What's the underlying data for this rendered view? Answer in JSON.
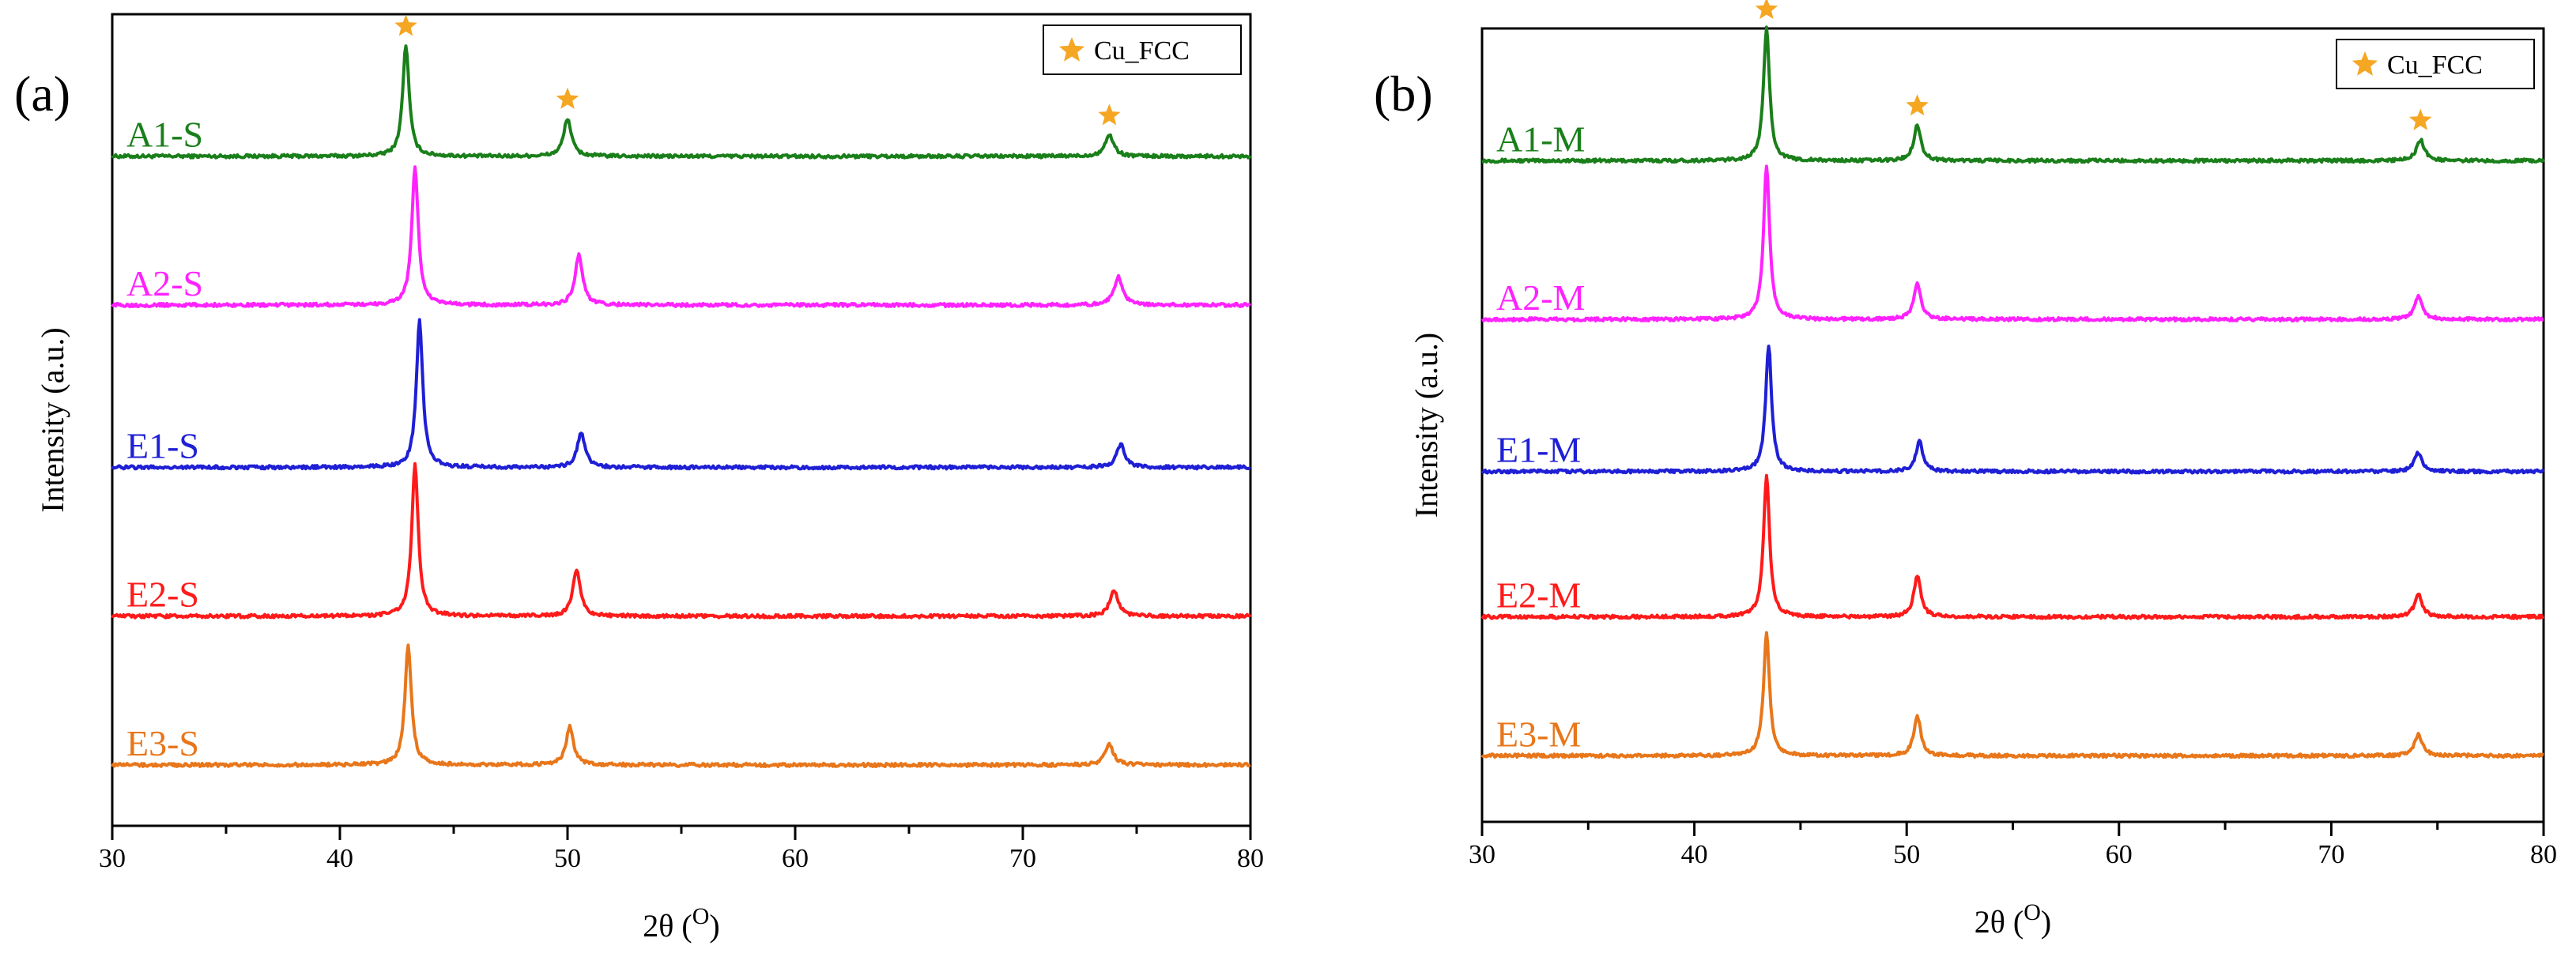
{
  "colors": {
    "A1": "#1a7f1a",
    "A2": "#ff22ff",
    "E1": "#1f1fd6",
    "E2": "#ff1a1a",
    "E3": "#e8761a",
    "star": "#f5a623",
    "axis": "#000000"
  },
  "chart_data": [
    {
      "type": "line",
      "panel_label": "(a)",
      "xlabel": "2θ (",
      "xlabel_unit": "O",
      "xlabel_close": ")",
      "ylabel": "Intensity (a.u.)",
      "xlim": [
        30,
        80
      ],
      "ylim": [
        0,
        6
      ],
      "xticks": [
        "30",
        "40",
        "50",
        "60",
        "70",
        "80"
      ],
      "legend": {
        "label": "Cu_FCC",
        "position": "top-right",
        "marker": "star"
      },
      "star_peaks": [
        42.9,
        50.0,
        73.8
      ],
      "series": [
        {
          "name": "A1-S",
          "color_key": "A1",
          "baseline": 4.95,
          "noise": 0.012,
          "peaks": [
            {
              "x": 42.9,
              "h": 0.82,
              "w": 0.17
            },
            {
              "x": 50.0,
              "h": 0.28,
              "w": 0.2
            },
            {
              "x": 73.8,
              "h": 0.16,
              "w": 0.22
            }
          ]
        },
        {
          "name": "A2-S",
          "color_key": "A2",
          "baseline": 3.85,
          "noise": 0.012,
          "peaks": [
            {
              "x": 43.3,
              "h": 1.02,
              "w": 0.17
            },
            {
              "x": 50.5,
              "h": 0.37,
              "w": 0.2
            },
            {
              "x": 74.2,
              "h": 0.21,
              "w": 0.22
            }
          ]
        },
        {
          "name": "E1-S",
          "color_key": "E1",
          "baseline": 2.65,
          "noise": 0.012,
          "peaks": [
            {
              "x": 43.5,
              "h": 1.08,
              "w": 0.17
            },
            {
              "x": 50.6,
              "h": 0.26,
              "w": 0.2
            },
            {
              "x": 74.3,
              "h": 0.17,
              "w": 0.22
            }
          ]
        },
        {
          "name": "E2-S",
          "color_key": "E2",
          "baseline": 1.55,
          "noise": 0.012,
          "peaks": [
            {
              "x": 43.3,
              "h": 1.12,
              "w": 0.17
            },
            {
              "x": 50.4,
              "h": 0.34,
              "w": 0.2
            },
            {
              "x": 74.0,
              "h": 0.19,
              "w": 0.22
            }
          ]
        },
        {
          "name": "E3-S",
          "color_key": "E3",
          "baseline": 0.45,
          "noise": 0.012,
          "peaks": [
            {
              "x": 43.0,
              "h": 0.88,
              "w": 0.17
            },
            {
              "x": 50.1,
              "h": 0.28,
              "w": 0.2
            },
            {
              "x": 73.8,
              "h": 0.15,
              "w": 0.22
            }
          ]
        }
      ]
    },
    {
      "type": "line",
      "panel_label": "(b)",
      "xlabel": "2θ (",
      "xlabel_unit": "O",
      "xlabel_close": ")",
      "ylabel": "Intensity (a.u.)",
      "xlim": [
        30,
        80
      ],
      "ylim": [
        0,
        6
      ],
      "xticks": [
        "30",
        "40",
        "50",
        "60",
        "70",
        "80"
      ],
      "legend": {
        "label": "Cu_FCC",
        "position": "top-right",
        "marker": "star"
      },
      "star_peaks": [
        43.4,
        50.5,
        74.2
      ],
      "series": [
        {
          "name": "A1-M",
          "color_key": "A1",
          "baseline": 5.0,
          "noise": 0.012,
          "peaks": [
            {
              "x": 43.4,
              "h": 1.0,
              "w": 0.17
            },
            {
              "x": 50.5,
              "h": 0.27,
              "w": 0.2
            },
            {
              "x": 74.2,
              "h": 0.16,
              "w": 0.22
            }
          ]
        },
        {
          "name": "A2-M",
          "color_key": "A2",
          "baseline": 3.8,
          "noise": 0.012,
          "peaks": [
            {
              "x": 43.4,
              "h": 1.16,
              "w": 0.17
            },
            {
              "x": 50.5,
              "h": 0.27,
              "w": 0.2
            },
            {
              "x": 74.1,
              "h": 0.17,
              "w": 0.22
            }
          ]
        },
        {
          "name": "E1-M",
          "color_key": "E1",
          "baseline": 2.65,
          "noise": 0.012,
          "peaks": [
            {
              "x": 43.5,
              "h": 0.95,
              "w": 0.17
            },
            {
              "x": 50.6,
              "h": 0.23,
              "w": 0.2
            },
            {
              "x": 74.1,
              "h": 0.14,
              "w": 0.22
            }
          ]
        },
        {
          "name": "E2-M",
          "color_key": "E2",
          "baseline": 1.55,
          "noise": 0.012,
          "peaks": [
            {
              "x": 43.4,
              "h": 1.07,
              "w": 0.17
            },
            {
              "x": 50.5,
              "h": 0.31,
              "w": 0.2
            },
            {
              "x": 74.1,
              "h": 0.17,
              "w": 0.22
            }
          ]
        },
        {
          "name": "E3-M",
          "color_key": "E3",
          "baseline": 0.5,
          "noise": 0.012,
          "peaks": [
            {
              "x": 43.4,
              "h": 0.92,
              "w": 0.17
            },
            {
              "x": 50.5,
              "h": 0.3,
              "w": 0.2
            },
            {
              "x": 74.1,
              "h": 0.16,
              "w": 0.22
            }
          ]
        }
      ]
    }
  ]
}
